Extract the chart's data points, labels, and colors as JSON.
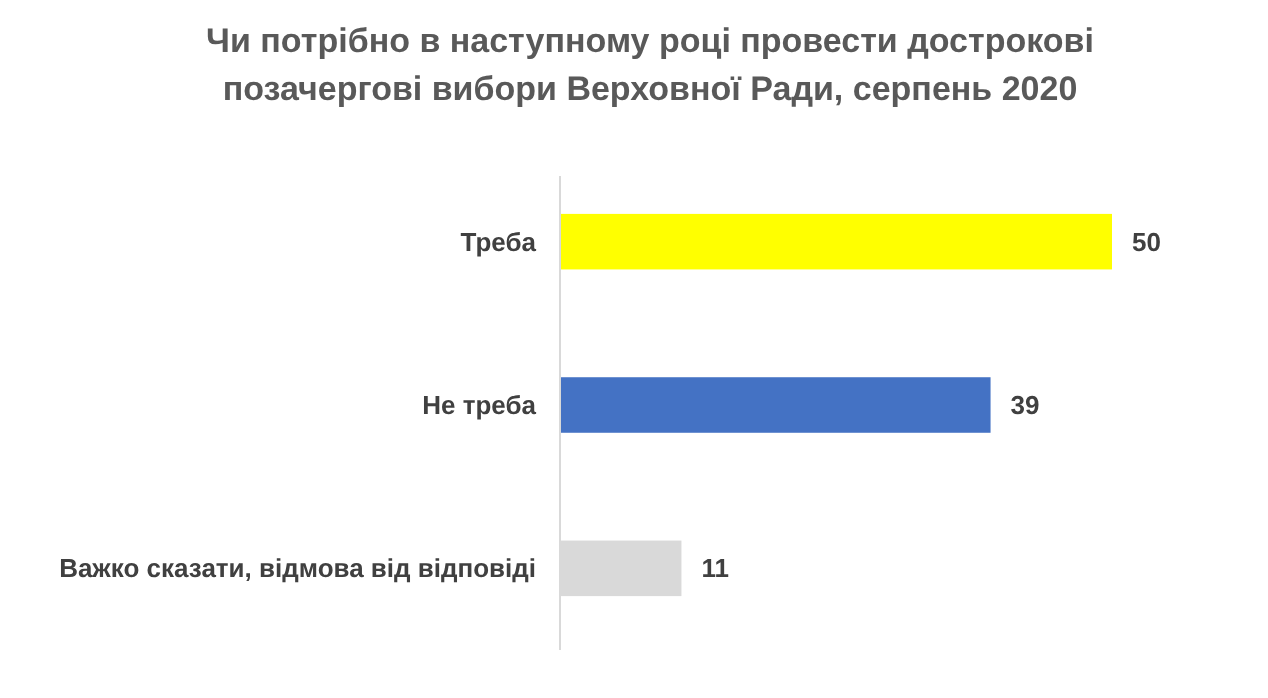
{
  "chart_data": {
    "type": "bar",
    "orientation": "horizontal",
    "title": "Чи потрібно в наступному році провести дострокові позачергові вибори Верховної Ради, серпень 2020",
    "categories": [
      "Треба",
      "Не треба",
      "Важко сказати, відмова від відповіді"
    ],
    "values": [
      50,
      39,
      11
    ],
    "colors": [
      "#ffff00",
      "#4472c4",
      "#d9d9d9"
    ],
    "data_labels": true
  }
}
